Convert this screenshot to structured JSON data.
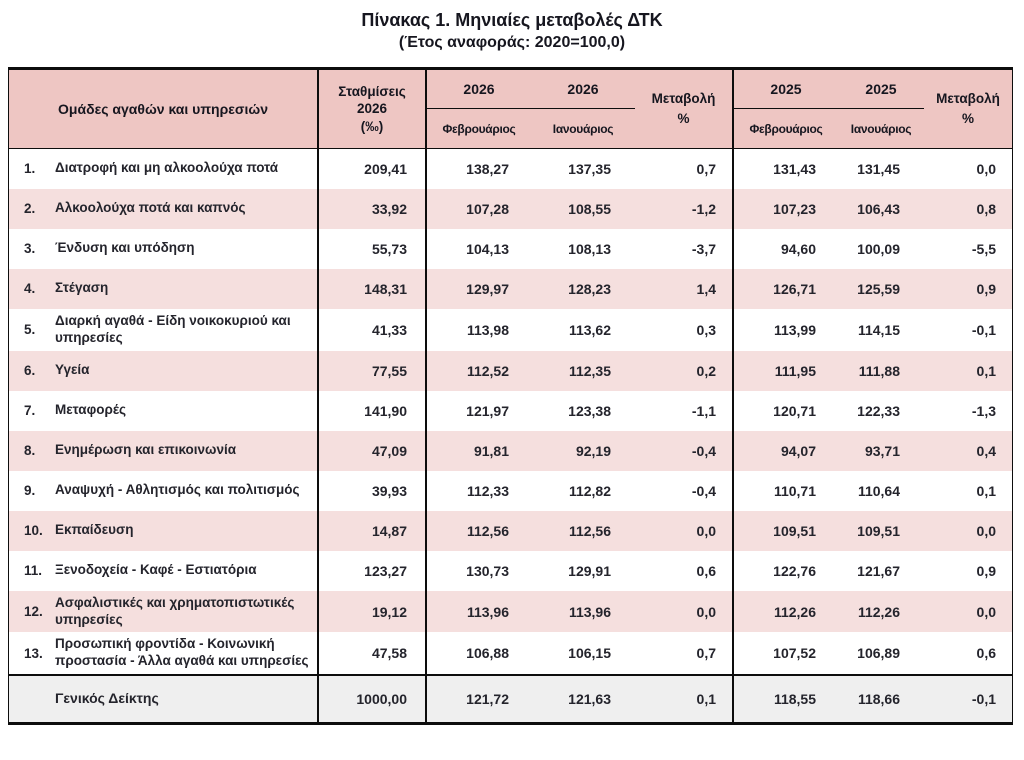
{
  "title": "Πίνακας 1. Μηνιαίες μεταβολές ΔΤΚ",
  "subtitle": "(Έτος αναφοράς: 2020=100,0)",
  "colors": {
    "header_pink": "#eec6c3",
    "row_pink": "#f5dfde",
    "total_gray": "#efefef",
    "border_black": "#0d0d0d"
  },
  "table": {
    "headers": {
      "groups": "Ομάδες αγαθών και υπηρεσιών",
      "weights_line1": "Σταθμίσεις",
      "weights_line2": "2026",
      "weights_line3": "(‰)",
      "year_2026": "2026",
      "year_2025": "2025",
      "month_feb": "Φεβρουάριος",
      "month_jan": "Ιανουάριος",
      "change_line1": "Μεταβολή",
      "change_line2": "%"
    },
    "rows": [
      {
        "num": "1.",
        "name": "Διατροφή και μη αλκοολούχα ποτά",
        "weight": "209,41",
        "feb26": "138,27",
        "jan26": "137,35",
        "chg26": "0,7",
        "feb25": "131,43",
        "jan25": "131,45",
        "chg25": "0,0"
      },
      {
        "num": "2.",
        "name": "Αλκοολούχα ποτά και καπνός",
        "weight": "33,92",
        "feb26": "107,28",
        "jan26": "108,55",
        "chg26": "-1,2",
        "feb25": "107,23",
        "jan25": "106,43",
        "chg25": "0,8"
      },
      {
        "num": "3.",
        "name": "Ένδυση και υπόδηση",
        "weight": "55,73",
        "feb26": "104,13",
        "jan26": "108,13",
        "chg26": "-3,7",
        "feb25": "94,60",
        "jan25": "100,09",
        "chg25": "-5,5"
      },
      {
        "num": "4.",
        "name": "Στέγαση",
        "weight": "148,31",
        "feb26": "129,97",
        "jan26": "128,23",
        "chg26": "1,4",
        "feb25": "126,71",
        "jan25": "125,59",
        "chg25": "0,9"
      },
      {
        "num": "5.",
        "name": "Διαρκή αγαθά - Είδη νοικοκυριού και υπηρεσίες",
        "weight": "41,33",
        "feb26": "113,98",
        "jan26": "113,62",
        "chg26": "0,3",
        "feb25": "113,99",
        "jan25": "114,15",
        "chg25": "-0,1"
      },
      {
        "num": "6.",
        "name": "Υγεία",
        "weight": "77,55",
        "feb26": "112,52",
        "jan26": "112,35",
        "chg26": "0,2",
        "feb25": "111,95",
        "jan25": "111,88",
        "chg25": "0,1"
      },
      {
        "num": "7.",
        "name": "Μεταφορές",
        "weight": "141,90",
        "feb26": "121,97",
        "jan26": "123,38",
        "chg26": "-1,1",
        "feb25": "120,71",
        "jan25": "122,33",
        "chg25": "-1,3"
      },
      {
        "num": "8.",
        "name": "Ενημέρωση και επικοινωνία",
        "weight": "47,09",
        "feb26": "91,81",
        "jan26": "92,19",
        "chg26": "-0,4",
        "feb25": "94,07",
        "jan25": "93,71",
        "chg25": "0,4"
      },
      {
        "num": "9.",
        "name": "Αναψυχή - Αθλητισμός και πολιτισμός",
        "weight": "39,93",
        "feb26": "112,33",
        "jan26": "112,82",
        "chg26": "-0,4",
        "feb25": "110,71",
        "jan25": "110,64",
        "chg25": "0,1"
      },
      {
        "num": "10.",
        "name": "Εκπαίδευση",
        "weight": "14,87",
        "feb26": "112,56",
        "jan26": "112,56",
        "chg26": "0,0",
        "feb25": "109,51",
        "jan25": "109,51",
        "chg25": "0,0"
      },
      {
        "num": "11.",
        "name": "Ξενοδοχεία - Καφέ - Εστιατόρια",
        "weight": "123,27",
        "feb26": "130,73",
        "jan26": "129,91",
        "chg26": "0,6",
        "feb25": "122,76",
        "jan25": "121,67",
        "chg25": "0,9"
      },
      {
        "num": "12.",
        "name": "Ασφαλιστικές και χρηματοπιστωτικές υπηρεσίες",
        "weight": "19,12",
        "feb26": "113,96",
        "jan26": "113,96",
        "chg26": "0,0",
        "feb25": "112,26",
        "jan25": "112,26",
        "chg25": "0,0"
      },
      {
        "num": "13.",
        "name": "Προσωπική φροντίδα - Κοινωνική προστασία - Άλλα αγαθά και υπηρεσίες",
        "weight": "47,58",
        "feb26": "106,88",
        "jan26": "106,15",
        "chg26": "0,7",
        "feb25": "107,52",
        "jan25": "106,89",
        "chg25": "0,6"
      }
    ],
    "total": {
      "num": "",
      "name": "Γενικός Δείκτης",
      "weight": "1000,00",
      "feb26": "121,72",
      "jan26": "121,63",
      "chg26": "0,1",
      "feb25": "118,55",
      "jan25": "118,66",
      "chg25": "-0,1"
    }
  }
}
